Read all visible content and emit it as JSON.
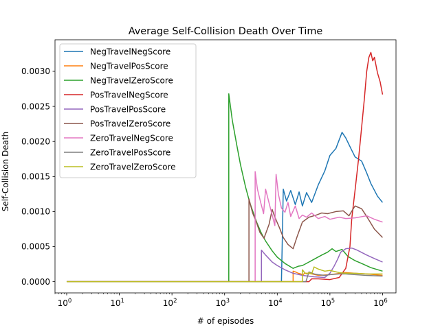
{
  "chart_data": {
    "type": "line",
    "title": "Average Self-Collision Death Over Time",
    "xlabel": "# of episodes",
    "ylabel": "Self-Collision Death",
    "xscale": "log",
    "xlim": [
      0.6,
      1800000
    ],
    "ylim": [
      -0.00016,
      0.00345
    ],
    "x_major_ticks": [
      {
        "value": 1,
        "base": "10",
        "exp": "0"
      },
      {
        "value": 10,
        "base": "10",
        "exp": "1"
      },
      {
        "value": 100,
        "base": "10",
        "exp": "2"
      },
      {
        "value": 1000,
        "base": "10",
        "exp": "3"
      },
      {
        "value": 10000,
        "base": "10",
        "exp": "4"
      },
      {
        "value": 100000,
        "base": "10",
        "exp": "5"
      },
      {
        "value": 1000000,
        "base": "10",
        "exp": "6"
      }
    ],
    "y_ticks": [
      {
        "value": 0.0,
        "label": "0.0000"
      },
      {
        "value": 0.0005,
        "label": "0.0005"
      },
      {
        "value": 0.001,
        "label": "0.0010"
      },
      {
        "value": 0.0015,
        "label": "0.0015"
      },
      {
        "value": 0.002,
        "label": "0.0020"
      },
      {
        "value": 0.0025,
        "label": "0.0025"
      },
      {
        "value": 0.003,
        "label": "0.0030"
      }
    ],
    "grid": false,
    "legend_position": "upper-left",
    "series": [
      {
        "name": "NegTravelNegScore",
        "color": "#1f77b4",
        "points": [
          [
            1,
            0
          ],
          [
            12000,
            0
          ],
          [
            12600,
            0.00077
          ],
          [
            13000,
            0.00132
          ],
          [
            15000,
            0.00115
          ],
          [
            18000,
            0.0013
          ],
          [
            22000,
            0.0011
          ],
          [
            26000,
            0.00128
          ],
          [
            30000,
            0.00108
          ],
          [
            36000,
            0.00127
          ],
          [
            45000,
            0.00113
          ],
          [
            60000,
            0.00138
          ],
          [
            80000,
            0.00158
          ],
          [
            100000,
            0.0018
          ],
          [
            130000,
            0.0019
          ],
          [
            170000,
            0.00213
          ],
          [
            200000,
            0.00205
          ],
          [
            250000,
            0.0019
          ],
          [
            300000,
            0.00178
          ],
          [
            400000,
            0.00172
          ],
          [
            500000,
            0.00155
          ],
          [
            600000,
            0.0014
          ],
          [
            800000,
            0.00122
          ],
          [
            1000000,
            0.00113
          ]
        ]
      },
      {
        "name": "NegTravelPosScore",
        "color": "#ff7f0e",
        "points": [
          [
            1,
            0
          ],
          [
            20000,
            0
          ],
          [
            20000,
            0.00015
          ],
          [
            22000,
            0.00014
          ],
          [
            25000,
            0.00012
          ],
          [
            28000,
            0.00011
          ],
          [
            31000,
            0.0001
          ],
          [
            33000,
            0.00012
          ],
          [
            40000,
            0.00012
          ],
          [
            60000,
            9e-05
          ],
          [
            100000,
            0.0001
          ],
          [
            200000,
            0.00013
          ],
          [
            300000,
            0.00012
          ],
          [
            500000,
            0.00011
          ],
          [
            700000,
            0.0001
          ],
          [
            1000000,
            9e-05
          ]
        ]
      },
      {
        "name": "NegTravelZeroScore",
        "color": "#2ca02c",
        "points": [
          [
            1,
            0
          ],
          [
            1200,
            0
          ],
          [
            1200,
            0.00268
          ],
          [
            1400,
            0.0023
          ],
          [
            1700,
            0.00195
          ],
          [
            2000,
            0.00167
          ],
          [
            2500,
            0.00135
          ],
          [
            3000,
            0.00113
          ],
          [
            4000,
            0.00086
          ],
          [
            5000,
            0.00069
          ],
          [
            6000,
            0.00058
          ],
          [
            8000,
            0.00044
          ],
          [
            10000,
            0.00035
          ],
          [
            14000,
            0.00026
          ],
          [
            20000,
            0.00019
          ],
          [
            25000,
            0.00022
          ],
          [
            30000,
            0.00023
          ],
          [
            40000,
            0.00028
          ],
          [
            50000,
            0.00032
          ],
          [
            70000,
            0.00038
          ],
          [
            90000,
            0.00042
          ],
          [
            110000,
            0.00047
          ],
          [
            130000,
            0.00043
          ],
          [
            170000,
            0.00046
          ],
          [
            220000,
            0.00036
          ],
          [
            300000,
            0.0003
          ],
          [
            400000,
            0.00026
          ],
          [
            600000,
            0.0002
          ],
          [
            1000000,
            0.00015
          ]
        ]
      },
      {
        "name": "PosTravelNegScore",
        "color": "#d62728",
        "points": [
          [
            1,
            0
          ],
          [
            40000,
            0
          ],
          [
            45000,
            4e-05
          ],
          [
            60000,
            4e-05
          ],
          [
            100000,
            3e-05
          ],
          [
            150000,
            6e-05
          ],
          [
            200000,
            0.00019
          ],
          [
            240000,
            0.0005
          ],
          [
            260000,
            0.0009
          ],
          [
            300000,
            0.0013
          ],
          [
            350000,
            0.00175
          ],
          [
            400000,
            0.0022
          ],
          [
            450000,
            0.0026
          ],
          [
            500000,
            0.003
          ],
          [
            550000,
            0.0032
          ],
          [
            600000,
            0.00327
          ],
          [
            650000,
            0.00315
          ],
          [
            700000,
            0.0032
          ],
          [
            800000,
            0.00298
          ],
          [
            900000,
            0.00285
          ],
          [
            1000000,
            0.00267
          ]
        ]
      },
      {
        "name": "PosTravelPosScore",
        "color": "#9467bd",
        "points": [
          [
            1,
            0
          ],
          [
            5000,
            0
          ],
          [
            5000,
            0.00045
          ],
          [
            6000,
            0.00038
          ],
          [
            8000,
            0.00028
          ],
          [
            10000,
            0.00023
          ],
          [
            14000,
            0.00017
          ],
          [
            20000,
            0.00012
          ],
          [
            30000,
            9e-05
          ],
          [
            50000,
            7e-05
          ],
          [
            80000,
            6e-05
          ],
          [
            100000,
            0.00012
          ],
          [
            120000,
            0.00022
          ],
          [
            140000,
            0.00032
          ],
          [
            160000,
            0.00042
          ],
          [
            200000,
            0.00047
          ],
          [
            260000,
            0.00048
          ],
          [
            330000,
            0.00045
          ],
          [
            500000,
            0.00038
          ],
          [
            700000,
            0.00033
          ],
          [
            1000000,
            0.00028
          ]
        ]
      },
      {
        "name": "PosTravelZeroScore",
        "color": "#8c564b",
        "points": [
          [
            1,
            0
          ],
          [
            2900,
            0
          ],
          [
            2900,
            0.00118
          ],
          [
            3400,
            0.00098
          ],
          [
            4000,
            0.00085
          ],
          [
            4700,
            0.0007
          ],
          [
            5600,
            0.00062
          ],
          [
            7000,
            0.00082
          ],
          [
            8000,
            0.00103
          ],
          [
            9000,
            0.00092
          ],
          [
            11000,
            0.00077
          ],
          [
            13000,
            0.00063
          ],
          [
            16000,
            0.00053
          ],
          [
            20000,
            0.00047
          ],
          [
            24000,
            0.00065
          ],
          [
            30000,
            0.00085
          ],
          [
            40000,
            0.00092
          ],
          [
            55000,
            0.00095
          ],
          [
            70000,
            0.00098
          ],
          [
            90000,
            0.00097
          ],
          [
            130000,
            0.001
          ],
          [
            180000,
            0.00101
          ],
          [
            230000,
            0.00094
          ],
          [
            300000,
            0.00108
          ],
          [
            400000,
            0.00104
          ],
          [
            500000,
            0.00093
          ],
          [
            700000,
            0.00075
          ],
          [
            1000000,
            0.00063
          ]
        ]
      },
      {
        "name": "ZeroTravelNegScore",
        "color": "#e377c2",
        "points": [
          [
            1,
            0
          ],
          [
            3800,
            0
          ],
          [
            3800,
            0.00157
          ],
          [
            4200,
            0.00132
          ],
          [
            4800,
            0.00114
          ],
          [
            5500,
            0.00097
          ],
          [
            6000,
            0.00132
          ],
          [
            7000,
            0.00112
          ],
          [
            8000,
            0.00095
          ],
          [
            9000,
            0.0008
          ],
          [
            9500,
            0.00153
          ],
          [
            10500,
            0.00125
          ],
          [
            12000,
            0.00105
          ],
          [
            14000,
            0.00099
          ],
          [
            16000,
            0.00113
          ],
          [
            18000,
            0.00093
          ],
          [
            22000,
            0.00108
          ],
          [
            26000,
            0.0009
          ],
          [
            30000,
            0.00095
          ],
          [
            36000,
            0.00092
          ],
          [
            45000,
            0.00098
          ],
          [
            60000,
            0.0009
          ],
          [
            80000,
            0.00093
          ],
          [
            100000,
            0.00089
          ],
          [
            150000,
            0.00092
          ],
          [
            200000,
            0.0009
          ],
          [
            300000,
            0.00091
          ],
          [
            500000,
            0.00094
          ],
          [
            700000,
            0.00089
          ],
          [
            1000000,
            0.00085
          ]
        ]
      },
      {
        "name": "ZeroTravelPosScore",
        "color": "#7f7f7f",
        "points": [
          [
            1,
            0
          ],
          [
            35000,
            0
          ],
          [
            40000,
            0.00014
          ],
          [
            50000,
            0.00011
          ],
          [
            60000,
            0.0001
          ],
          [
            80000,
            9e-05
          ],
          [
            100000,
            0.0001
          ],
          [
            150000,
            0.00011
          ],
          [
            200000,
            0.00011
          ],
          [
            300000,
            0.0001
          ],
          [
            500000,
            9e-05
          ],
          [
            1000000,
            8e-05
          ]
        ]
      },
      {
        "name": "ZeroTravelZeroScore",
        "color": "#bcbd22",
        "points": [
          [
            1,
            0
          ],
          [
            30000,
            0
          ],
          [
            30000,
            0.00017
          ],
          [
            33000,
            0.00013
          ],
          [
            36000,
            0.00011
          ],
          [
            40000,
            0.00013
          ],
          [
            45000,
            0.00011
          ],
          [
            50000,
            0.00021
          ],
          [
            60000,
            0.00018
          ],
          [
            80000,
            0.00015
          ],
          [
            100000,
            0.00016
          ],
          [
            150000,
            0.00013
          ],
          [
            200000,
            0.00012
          ],
          [
            300000,
            0.00012
          ],
          [
            500000,
            0.00011
          ],
          [
            1000000,
            0.00011
          ]
        ]
      }
    ]
  }
}
